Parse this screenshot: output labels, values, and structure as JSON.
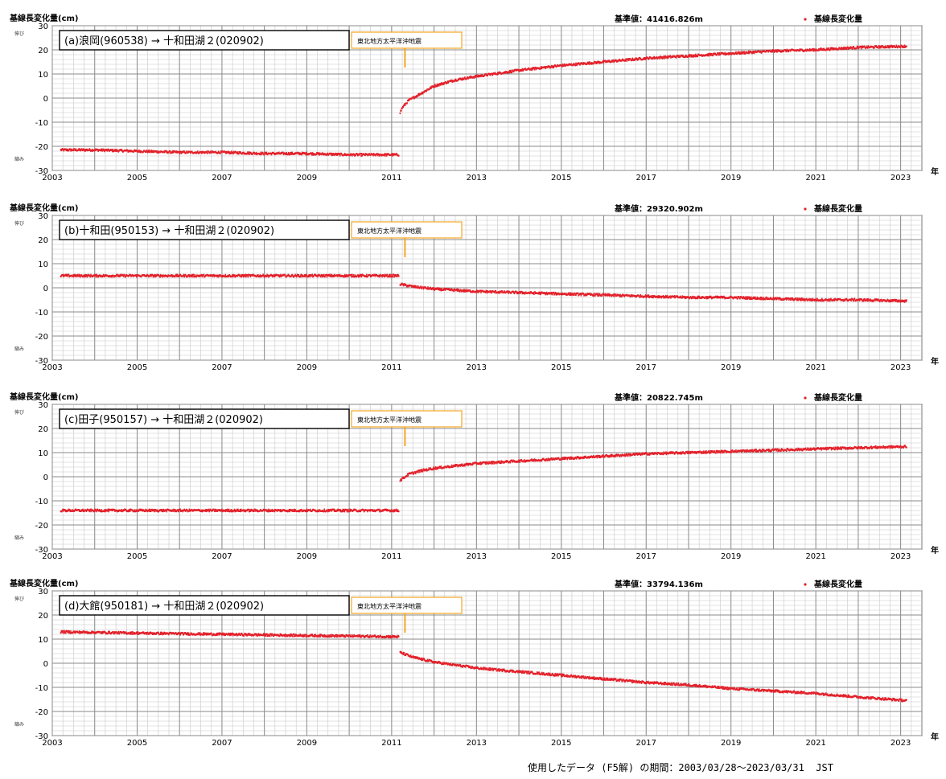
{
  "chart_data": [
    {
      "type": "scatter",
      "panel_label": "(a)浪岡(960538) → 十和田湖２(020902)",
      "ylabel": "基線長変化量(cm)",
      "reference_text": "基準値：41416.826m",
      "legend": "基線長変化量",
      "event_label": "東北地方太平洋沖地震",
      "event_x": 2011.2,
      "axis_side_labels": [
        "伸び",
        "縮み"
      ],
      "xlabel": "年",
      "xlim": [
        2003,
        2023.5
      ],
      "ylim": [
        -30,
        30
      ],
      "xticks": [
        2003,
        2005,
        2007,
        2009,
        2011,
        2013,
        2015,
        2017,
        2019,
        2021,
        2023
      ],
      "yticks": [
        -30,
        -20,
        -10,
        0,
        10,
        20,
        30
      ],
      "series": [
        {
          "x": [
            2003.2,
            2004,
            2005,
            2006,
            2007,
            2008,
            2009,
            2010,
            2011.18
          ],
          "y": [
            -21.5,
            -21.5,
            -22,
            -22.5,
            -22.5,
            -23,
            -23,
            -23.5,
            -23.5
          ]
        },
        {
          "x": [
            2011.2,
            2011.25,
            2011.4,
            2011.6,
            2012,
            2012.5,
            2013,
            2014,
            2015,
            2016,
            2017,
            2018,
            2019,
            2020,
            2021,
            2022,
            2023.15
          ],
          "y": [
            -6,
            -4,
            -1,
            1,
            5,
            7.5,
            9,
            11.5,
            13.5,
            15,
            16.5,
            17.5,
            18.5,
            19.5,
            20,
            21,
            21.5
          ]
        }
      ]
    },
    {
      "type": "scatter",
      "panel_label": "(b)十和田(950153) → 十和田湖２(020902)",
      "ylabel": "基線長変化量(cm)",
      "reference_text": "基準値：29320.902m",
      "legend": "基線長変化量",
      "event_label": "東北地方太平洋沖地震",
      "event_x": 2011.2,
      "axis_side_labels": [
        "伸び",
        "縮み"
      ],
      "xlabel": "年",
      "xlim": [
        2003,
        2023.5
      ],
      "ylim": [
        -30,
        30
      ],
      "xticks": [
        2003,
        2005,
        2007,
        2009,
        2011,
        2013,
        2015,
        2017,
        2019,
        2021,
        2023
      ],
      "yticks": [
        -30,
        -20,
        -10,
        0,
        10,
        20,
        30
      ],
      "series": [
        {
          "x": [
            2003.2,
            2005,
            2007,
            2009,
            2011.18
          ],
          "y": [
            5,
            5,
            5,
            5,
            5
          ]
        },
        {
          "x": [
            2011.2,
            2011.5,
            2012,
            2013,
            2014,
            2015,
            2016,
            2017,
            2018,
            2019,
            2020,
            2021,
            2022,
            2023.15
          ],
          "y": [
            1.5,
            0.5,
            -0.5,
            -1.5,
            -2,
            -2.5,
            -3,
            -3.5,
            -4,
            -4,
            -4.5,
            -5,
            -5,
            -5.5
          ]
        }
      ]
    },
    {
      "type": "scatter",
      "panel_label": "(c)田子(950157) → 十和田湖２(020902)",
      "ylabel": "基線長変化量(cm)",
      "reference_text": "基準値：20822.745m",
      "legend": "基線長変化量",
      "event_label": "東北地方太平洋沖地震",
      "event_x": 2011.2,
      "axis_side_labels": [
        "伸び",
        "縮み"
      ],
      "xlabel": "年",
      "xlim": [
        2003,
        2023.5
      ],
      "ylim": [
        -30,
        30
      ],
      "xticks": [
        2003,
        2005,
        2007,
        2009,
        2011,
        2013,
        2015,
        2017,
        2019,
        2021,
        2023
      ],
      "yticks": [
        -30,
        -20,
        -10,
        0,
        10,
        20,
        30
      ],
      "series": [
        {
          "x": [
            2003.2,
            2005,
            2007,
            2009,
            2011.18
          ],
          "y": [
            -14,
            -14,
            -14,
            -14,
            -14
          ]
        },
        {
          "x": [
            2011.2,
            2011.4,
            2011.7,
            2012,
            2013,
            2014,
            2015,
            2016,
            2017,
            2018,
            2019,
            2020,
            2021,
            2022,
            2023.15
          ],
          "y": [
            -1.5,
            1,
            2.5,
            3.5,
            5.5,
            6.5,
            7.5,
            8.5,
            9.5,
            10,
            10.5,
            11,
            11.5,
            12,
            12.5
          ]
        }
      ]
    },
    {
      "type": "scatter",
      "panel_label": "(d)大館(950181) → 十和田湖２(020902)",
      "ylabel": "基線長変化量(cm)",
      "reference_text": "基準値：33794.136m",
      "legend": "基線長変化量",
      "event_label": "東北地方太平洋沖地震",
      "event_x": 2011.2,
      "axis_side_labels": [
        "伸び",
        "縮み"
      ],
      "xlabel": "年",
      "xlim": [
        2003,
        2023.5
      ],
      "ylim": [
        -30,
        30
      ],
      "xticks": [
        2003,
        2005,
        2007,
        2009,
        2011,
        2013,
        2015,
        2017,
        2019,
        2021,
        2023
      ],
      "yticks": [
        -30,
        -20,
        -10,
        0,
        10,
        20,
        30
      ],
      "series": [
        {
          "x": [
            2003.2,
            2005,
            2007,
            2009,
            2011.18
          ],
          "y": [
            13,
            12.5,
            12,
            11.5,
            11
          ]
        },
        {
          "x": [
            2011.2,
            2011.5,
            2012,
            2013,
            2014,
            2015,
            2016,
            2017,
            2018,
            2019,
            2020,
            2021,
            2022,
            2023.15
          ],
          "y": [
            4.5,
            2.5,
            0.5,
            -2,
            -3.5,
            -5,
            -6.5,
            -8,
            -9,
            -10.5,
            -11.5,
            -12.5,
            -14,
            -15.5
          ]
        }
      ]
    }
  ],
  "footer": "使用したデータ (F5解) の期間：2003/03/28～2023/03/31  JST",
  "colors": {
    "data": "#e3202a",
    "event_box": "#f5a623",
    "grid_major": "#8a8a8a",
    "grid_minor": "#c8c8c8"
  }
}
